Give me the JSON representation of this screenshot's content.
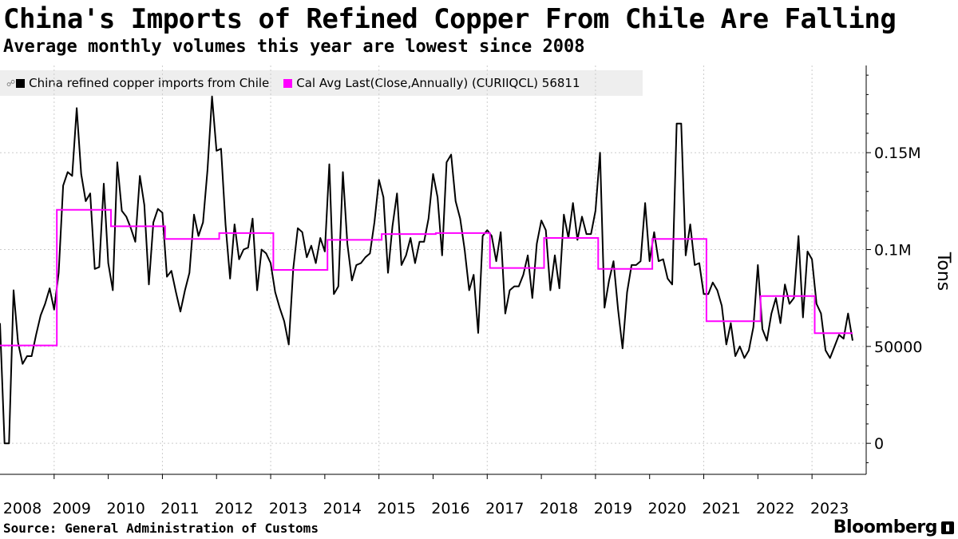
{
  "header": {
    "title": "China's Imports of Refined Copper From Chile Are Falling",
    "subtitle": "Average monthly volumes this year are lowest since 2008"
  },
  "legend": {
    "series1_label": "China refined copper imports from Chile",
    "series2_label": "Cal Avg Last(Close,Annually) (CURIIQCL) 56811"
  },
  "footer": {
    "source": "Source: General Administration of Customs",
    "brand": "Bloomberg"
  },
  "colors": {
    "series1": "#000000",
    "series2": "#ff00ff",
    "grid": "#cccccc",
    "legend_bg": "#eeeeee"
  },
  "chart_data": {
    "type": "line",
    "title": "China's Imports of Refined Copper From Chile Are Falling",
    "ylabel": "Tons",
    "xlabel": "",
    "ylim": [
      -16000,
      195000
    ],
    "xlim": [
      2008.0,
      2023.75
    ],
    "y_ticks": [
      0,
      50000,
      100000,
      150000
    ],
    "y_tick_labels": [
      "0",
      "50000",
      "0.1M",
      "0.15M"
    ],
    "x_tick_labels": [
      "2008",
      "2009",
      "2010",
      "2011",
      "2012",
      "2013",
      "2014",
      "2015",
      "2016",
      "2017",
      "2018",
      "2019",
      "2020",
      "2021",
      "2022",
      "2023"
    ],
    "series": [
      {
        "name": "China refined copper imports from Chile",
        "start_year": 2008,
        "start_month": 1,
        "values": [
          62000,
          0,
          0,
          79000,
          52000,
          41000,
          45000,
          45000,
          56000,
          66000,
          72000,
          80000,
          69000,
          88000,
          133000,
          140000,
          138000,
          173000,
          139000,
          125000,
          129000,
          90000,
          91000,
          134000,
          93000,
          79000,
          145000,
          120000,
          117000,
          111000,
          104000,
          138000,
          123000,
          82000,
          114000,
          121000,
          119000,
          86000,
          89000,
          78000,
          68000,
          79000,
          88000,
          118000,
          107000,
          114000,
          141000,
          179000,
          151000,
          152000,
          113000,
          85000,
          113000,
          95000,
          100000,
          101000,
          116000,
          79000,
          100000,
          98000,
          93000,
          78000,
          70000,
          63000,
          51000,
          90000,
          111000,
          109000,
          96000,
          102000,
          93000,
          106000,
          99000,
          144000,
          77000,
          81000,
          140000,
          103000,
          84000,
          92000,
          93000,
          96000,
          98000,
          114000,
          136000,
          127000,
          88000,
          112000,
          129000,
          92000,
          97000,
          106000,
          93000,
          104000,
          104000,
          116000,
          139000,
          127000,
          97000,
          145000,
          149000,
          125000,
          116000,
          100000,
          79000,
          87000,
          57000,
          107000,
          110000,
          107000,
          94000,
          109000,
          67000,
          79000,
          81000,
          81000,
          87000,
          97000,
          75000,
          103000,
          115000,
          110000,
          79000,
          97000,
          80000,
          118000,
          106000,
          124000,
          105000,
          117000,
          108000,
          108000,
          120000,
          150000,
          70000,
          84000,
          94000,
          69000,
          49000,
          78000,
          92000,
          92000,
          94000,
          124000,
          94000,
          109000,
          94000,
          95000,
          85000,
          82000,
          165000,
          165000,
          97000,
          113000,
          92000,
          93000,
          77000,
          77000,
          83000,
          79000,
          71000,
          51000,
          62000,
          45000,
          50000,
          44000,
          48000,
          60000,
          92000,
          59000,
          53000,
          67000,
          75000,
          62000,
          82000,
          72000,
          75000,
          107000,
          65000,
          99000,
          95000,
          72000,
          67000,
          48000,
          44000,
          50000,
          56000,
          54000,
          67000,
          53000
        ]
      },
      {
        "name": "Cal Avg Last(Close,Annually) (CURIIQCL) 56811",
        "annual_years": [
          2008,
          2009,
          2010,
          2011,
          2012,
          2013,
          2014,
          2015,
          2016,
          2017,
          2018,
          2019,
          2020,
          2021,
          2022,
          2023
        ],
        "annual_values": [
          50500,
          120500,
          112000,
          105500,
          108500,
          89500,
          105000,
          108000,
          108500,
          90500,
          106000,
          90000,
          105500,
          63000,
          76000,
          56811
        ]
      }
    ]
  }
}
